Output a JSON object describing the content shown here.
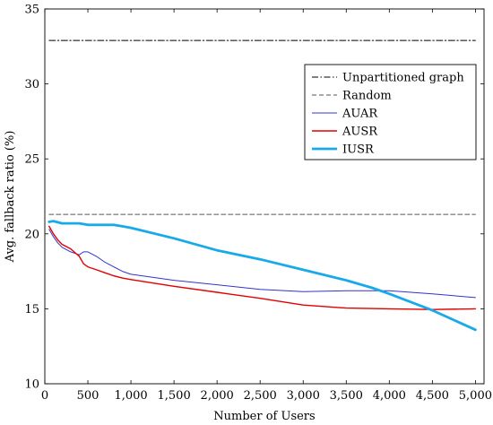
{
  "chart_data": {
    "type": "line",
    "xlabel": "Number of Users",
    "ylabel": "Avg. fallback ratio (%)",
    "xlim": [
      0,
      5100
    ],
    "ylim": [
      10,
      35
    ],
    "xticks": [
      0,
      500,
      1000,
      1500,
      2000,
      2500,
      3000,
      3500,
      4000,
      4500,
      5000
    ],
    "xtick_labels": [
      "0",
      "500",
      "1,000",
      "1,500",
      "2,000",
      "2,500",
      "3,000",
      "3,500",
      "4,000",
      "4,500",
      "5,000"
    ],
    "yticks": [
      10,
      15,
      20,
      25,
      30,
      35
    ],
    "ytick_labels": [
      "10",
      "15",
      "20",
      "25",
      "30",
      "35"
    ],
    "grid": false,
    "legend_position": "top-right",
    "series": [
      {
        "name": "Unpartitioned graph",
        "color": "#000000",
        "dash": "dashdot",
        "width": 1,
        "x": [
          50,
          5000
        ],
        "y": [
          32.9,
          32.9
        ]
      },
      {
        "name": "Random",
        "color": "#555555",
        "dash": "dashed",
        "width": 1,
        "x": [
          50,
          5000
        ],
        "y": [
          21.3,
          21.3
        ]
      },
      {
        "name": "AUAR",
        "color": "#3333cc",
        "dash": "solid",
        "width": 1,
        "x": [
          50,
          100,
          150,
          200,
          300,
          400,
          450,
          500,
          600,
          700,
          800,
          900,
          1000,
          1500,
          2000,
          2500,
          3000,
          3500,
          4000,
          4500,
          5000
        ],
        "y": [
          20.3,
          19.8,
          19.4,
          19.1,
          18.8,
          18.6,
          18.8,
          18.8,
          18.5,
          18.1,
          17.8,
          17.5,
          17.3,
          16.9,
          16.6,
          16.3,
          16.15,
          16.2,
          16.2,
          16.0,
          15.75
        ]
      },
      {
        "name": "AUSR",
        "color": "#e00000",
        "dash": "solid",
        "width": 1.4,
        "x": [
          50,
          100,
          150,
          200,
          300,
          400,
          450,
          500,
          600,
          700,
          800,
          900,
          1000,
          1500,
          2000,
          2500,
          3000,
          3500,
          4000,
          4500,
          5000
        ],
        "y": [
          20.5,
          20.0,
          19.6,
          19.3,
          19.0,
          18.5,
          18.0,
          17.8,
          17.6,
          17.4,
          17.2,
          17.05,
          16.95,
          16.5,
          16.1,
          15.7,
          15.25,
          15.05,
          15.0,
          14.95,
          15.0
        ]
      },
      {
        "name": "IUSR",
        "color": "#1aa9e8",
        "dash": "solid",
        "width": 2.8,
        "x": [
          50,
          100,
          200,
          300,
          400,
          500,
          600,
          700,
          800,
          900,
          1000,
          1500,
          2000,
          2500,
          3000,
          3500,
          3800,
          4000,
          4500,
          5000
        ],
        "y": [
          20.8,
          20.85,
          20.7,
          20.7,
          20.7,
          20.6,
          20.6,
          20.6,
          20.6,
          20.5,
          20.4,
          19.7,
          18.9,
          18.3,
          17.6,
          16.9,
          16.4,
          16.0,
          14.9,
          13.6
        ]
      }
    ]
  }
}
